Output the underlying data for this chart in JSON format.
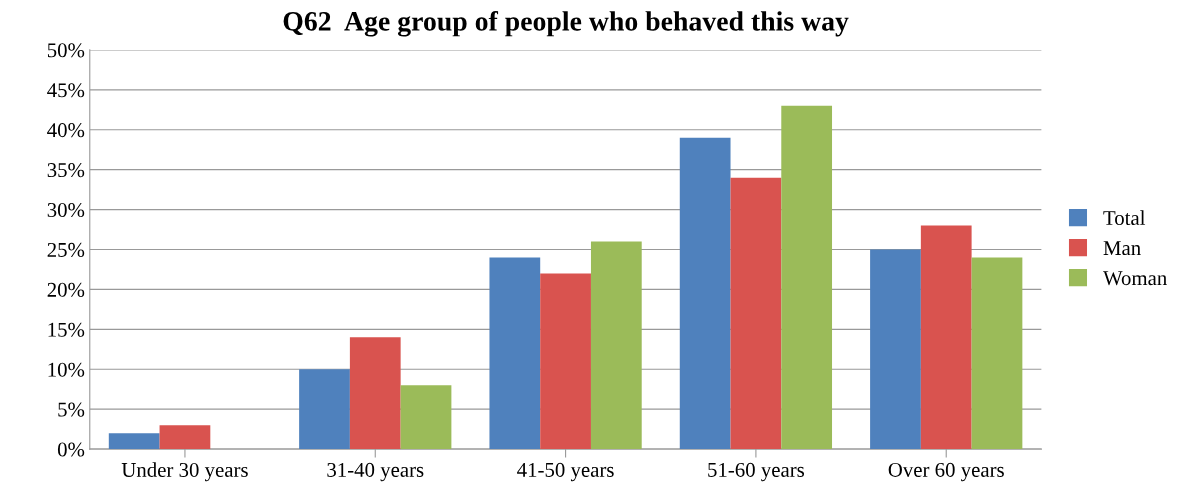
{
  "chart_data": {
    "type": "bar",
    "title": "Q62  Age group of people who behaved this way",
    "categories": [
      "Under 30 years",
      "31-40 years",
      "41-50 years",
      "51-60 years",
      "Over 60 years"
    ],
    "series": [
      {
        "name": "Total",
        "color": "#4f81bd",
        "values": [
          2,
          10,
          24,
          39,
          25
        ]
      },
      {
        "name": "Man",
        "color": "#d9534f",
        "values": [
          3,
          14,
          22,
          34,
          28
        ]
      },
      {
        "name": "Woman",
        "color": "#9bbb59",
        "values": [
          0,
          8,
          26,
          43,
          24
        ]
      }
    ],
    "ylim": [
      0,
      50
    ],
    "yticks": [
      {
        "value": 0,
        "label": "0%"
      },
      {
        "value": 5,
        "label": "5%"
      },
      {
        "value": 10,
        "label": "10%"
      },
      {
        "value": 15,
        "label": "15%"
      },
      {
        "value": 20,
        "label": "20%"
      },
      {
        "value": 25,
        "label": "25%"
      },
      {
        "value": 30,
        "label": "30%"
      },
      {
        "value": 35,
        "label": "35%"
      },
      {
        "value": 40,
        "label": "40%"
      },
      {
        "value": 45,
        "label": "45%"
      },
      {
        "value": 50,
        "label": "50%"
      }
    ],
    "grid": "y",
    "legend": "right"
  }
}
